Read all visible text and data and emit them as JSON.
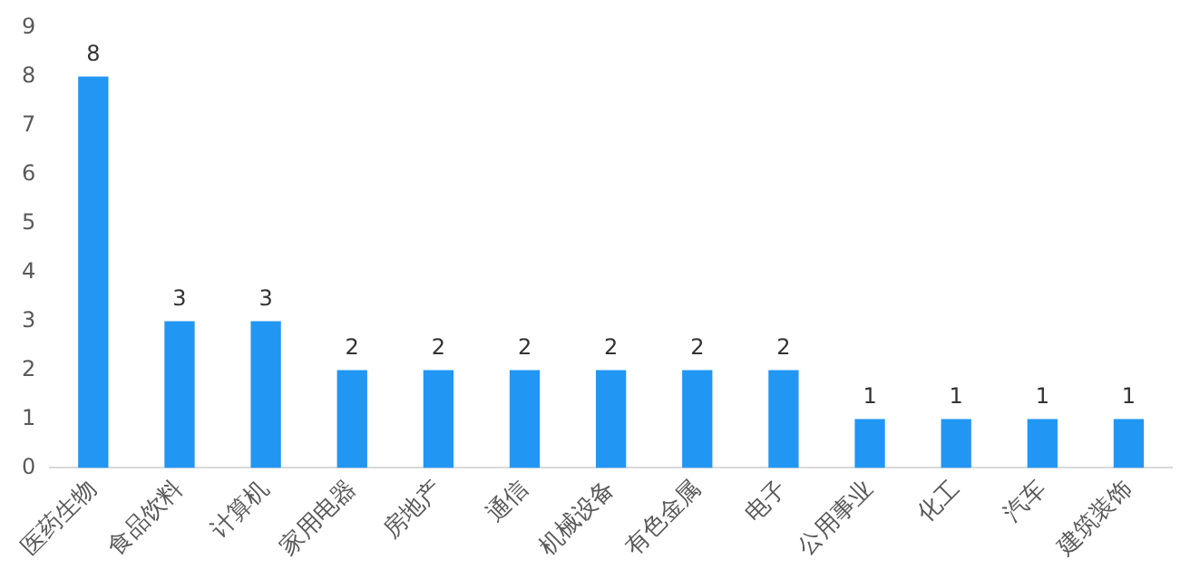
{
  "chart_data": {
    "type": "bar",
    "categories": [
      "医药生物",
      "食品饮料",
      "计算机",
      "家用电器",
      "房地产",
      "通信",
      "机械设备",
      "有色金属",
      "电子",
      "公用事业",
      "化工",
      "汽车",
      "建筑装饰"
    ],
    "values": [
      8,
      3,
      3,
      2,
      2,
      2,
      2,
      2,
      2,
      1,
      1,
      1,
      1
    ],
    "color": "#2196f3",
    "ylim": [
      0,
      9
    ],
    "yticks": [
      0,
      1,
      2,
      3,
      4,
      5,
      6,
      7,
      8,
      9
    ],
    "grid": false,
    "legend": false,
    "data_labels": true
  }
}
